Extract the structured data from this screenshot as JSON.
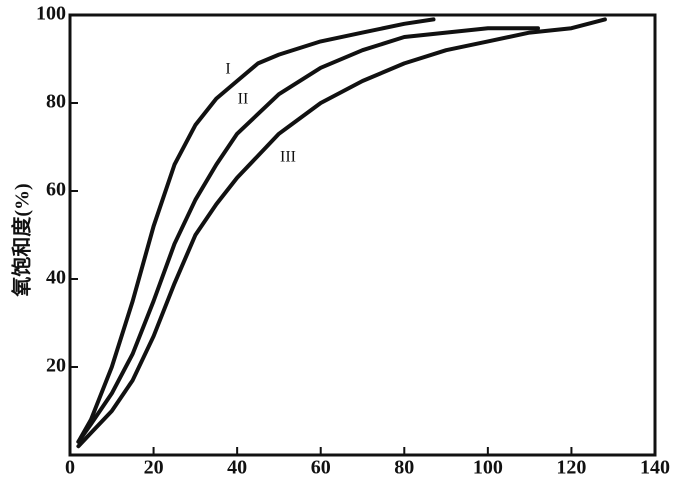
{
  "chart_data": {
    "type": "line",
    "y_label": "氧饱和度(%)",
    "xlim": [
      0,
      140
    ],
    "xticks": [
      0,
      20,
      40,
      60,
      80,
      100,
      120,
      140
    ],
    "ylim": [
      0,
      100
    ],
    "yticks": [
      20,
      40,
      60,
      80,
      100
    ],
    "series": [
      {
        "name": "I",
        "color": "#111111",
        "x": [
          2,
          5,
          10,
          15,
          20,
          25,
          30,
          35,
          40,
          45,
          50,
          60,
          70,
          80,
          87
        ],
        "values": [
          3,
          8,
          20,
          35,
          52,
          66,
          75,
          81,
          85,
          89,
          91,
          94,
          96,
          98,
          99
        ]
      },
      {
        "name": "II",
        "color": "#111111",
        "x": [
          2,
          5,
          10,
          15,
          20,
          25,
          30,
          35,
          40,
          50,
          60,
          70,
          80,
          90,
          100,
          112
        ],
        "values": [
          3,
          7,
          14,
          23,
          35,
          48,
          58,
          66,
          73,
          82,
          88,
          92,
          95,
          96,
          97,
          97
        ]
      },
      {
        "name": "III",
        "color": "#111111",
        "x": [
          2,
          5,
          10,
          15,
          20,
          25,
          30,
          35,
          40,
          50,
          60,
          70,
          80,
          90,
          100,
          110,
          120,
          128
        ],
        "values": [
          2,
          5,
          10,
          17,
          27,
          39,
          50,
          57,
          63,
          73,
          80,
          85,
          89,
          92,
          94,
          96,
          97,
          99
        ]
      }
    ]
  }
}
